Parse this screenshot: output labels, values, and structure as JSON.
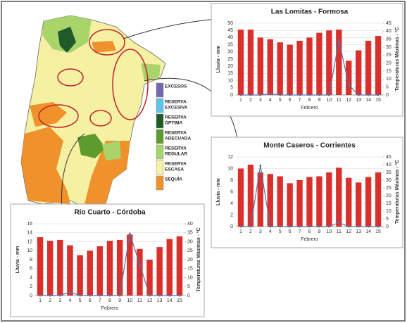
{
  "chart_data": [
    {
      "type": "bar_line",
      "title": "Las Lomitas - Formosa",
      "x_label": "Febrero",
      "y_label": "Lluvia - mm",
      "y2_label": "Temperaturas Máximas - ºC",
      "categories": [
        1,
        2,
        3,
        4,
        5,
        6,
        7,
        8,
        9,
        10,
        11,
        12,
        13,
        14,
        15
      ],
      "ylim": [
        0,
        50
      ],
      "yticks": [
        0,
        5,
        10,
        15,
        20,
        25,
        30,
        35,
        40,
        45,
        50
      ],
      "y2lim": [
        0,
        45
      ],
      "y2ticks": [
        0,
        5,
        10,
        15,
        20,
        25,
        30,
        35,
        40,
        45
      ],
      "grid": true,
      "series": [
        {
          "type": "bar",
          "axis": "y2",
          "color": "#d9302c",
          "values": [
            41,
            41,
            36,
            35,
            33,
            31.5,
            34,
            36,
            39,
            40.5,
            41,
            21.5,
            28,
            34,
            37
          ]
        },
        {
          "type": "line",
          "axis": "y",
          "color": "#5b6fa6",
          "values": [
            0,
            0,
            0,
            1,
            0,
            0,
            0,
            0,
            0,
            0,
            38,
            7,
            0,
            0,
            0
          ]
        }
      ]
    },
    {
      "type": "bar_line",
      "title": "Monte Caseros - Corrientes",
      "x_label": "Febrero",
      "y_label": "Lluvia - mm",
      "y2_label": "Temperaturas Máximas - ºC",
      "categories": [
        1,
        2,
        3,
        4,
        5,
        6,
        7,
        8,
        9,
        10,
        11,
        12,
        13,
        14,
        15
      ],
      "ylim": [
        0,
        12
      ],
      "yticks": [
        0,
        2,
        4,
        6,
        8,
        10,
        12
      ],
      "y2lim": [
        0,
        45
      ],
      "y2ticks": [
        0,
        5,
        10,
        15,
        20,
        25,
        30,
        35,
        40,
        45
      ],
      "grid": true,
      "series": [
        {
          "type": "bar",
          "axis": "y2",
          "color": "#d9302c",
          "values": [
            37.5,
            40,
            35,
            34,
            32.5,
            28,
            30,
            32,
            32.5,
            35,
            38,
            31.5,
            28.5,
            32,
            35
          ]
        },
        {
          "type": "line",
          "axis": "y",
          "color": "#5b6fa6",
          "values": [
            0,
            0,
            10.5,
            0,
            0,
            0,
            0,
            0,
            0,
            0,
            0.7,
            0,
            0,
            0,
            0
          ]
        }
      ]
    },
    {
      "type": "bar_line",
      "title": "Río Cuarto - Córdoba",
      "x_label": "Febrero",
      "y_label": "Lluvia - mm",
      "y2_label": "Temperaturas Máximas - ºC",
      "categories": [
        1,
        2,
        3,
        4,
        5,
        6,
        7,
        8,
        9,
        10,
        11,
        12,
        13,
        14,
        15
      ],
      "ylim": [
        0,
        16
      ],
      "yticks": [
        0,
        2,
        4,
        6,
        8,
        10,
        12,
        14,
        16
      ],
      "y2lim": [
        0,
        40
      ],
      "y2ticks": [
        0,
        5,
        10,
        15,
        20,
        25,
        30,
        35,
        40
      ],
      "grid": true,
      "series": [
        {
          "type": "bar",
          "axis": "y2",
          "color": "#d9302c",
          "values": [
            32.5,
            30.5,
            31,
            28,
            22.5,
            25,
            27.5,
            30.5,
            31,
            34,
            26,
            20,
            27,
            31.5,
            33
          ]
        },
        {
          "type": "line",
          "axis": "y",
          "color": "#5b6fa6",
          "values": [
            0,
            0,
            0,
            0.8,
            0,
            0,
            0,
            0,
            0,
            13.8,
            7,
            0,
            0,
            0,
            0
          ]
        }
      ]
    }
  ],
  "map": {
    "legend": [
      {
        "lines": [
          "EXCESOS"
        ],
        "color": "#7566ae"
      },
      {
        "lines": [
          "RESERVA",
          "EXCESIVA"
        ],
        "color": "#5cc3ea"
      },
      {
        "lines": [
          "RESERVA",
          "ÓPTIMA"
        ],
        "color": "#1f5a2a"
      },
      {
        "lines": [
          "RESERVA",
          "ADECUADA"
        ],
        "color": "#5d9c2c"
      },
      {
        "lines": [
          "RESERVA",
          "REGULAR"
        ],
        "color": "#a9d46a"
      },
      {
        "lines": [
          "RESERVA",
          "ESCASA"
        ],
        "color": "#f6f0a2"
      },
      {
        "lines": [
          "SEQUÍA"
        ],
        "color": "#f0922c"
      }
    ]
  }
}
